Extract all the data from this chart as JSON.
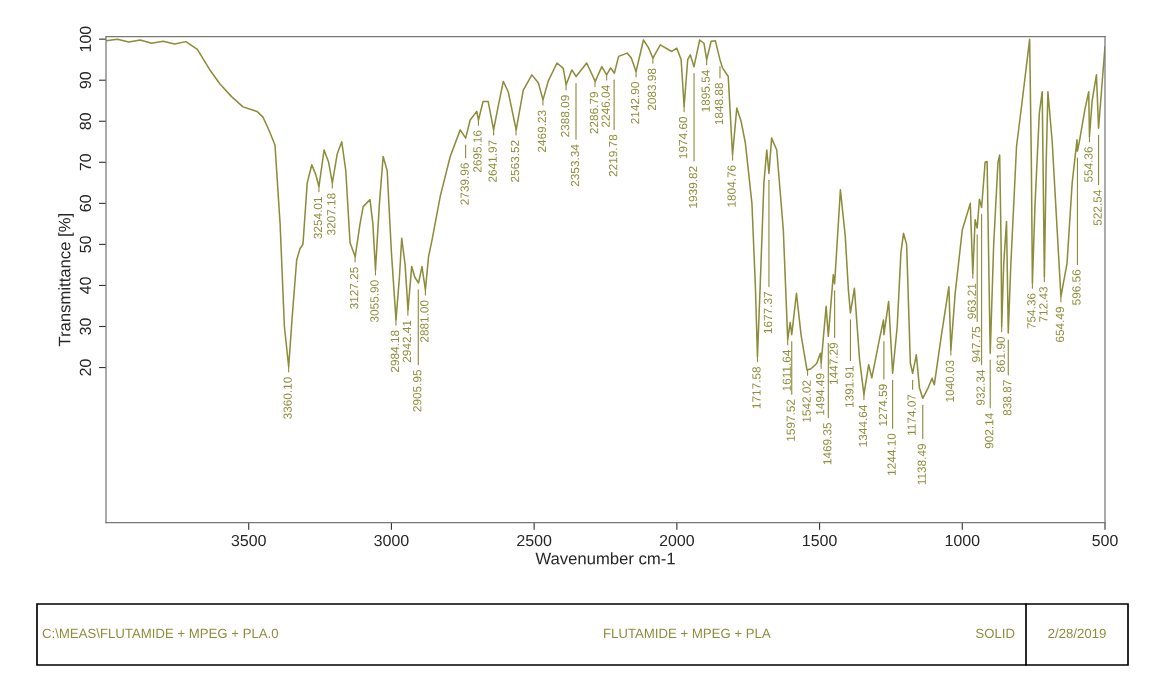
{
  "chart_data": {
    "type": "line",
    "xlabel": "Wavenumber cm-1",
    "ylabel": "Transmittance [%]",
    "xlim": [
      4000,
      500
    ],
    "ylim": [
      -17.8,
      100.6
    ],
    "xticks": [
      3500,
      3000,
      2500,
      2000,
      1500,
      1000,
      500
    ],
    "yticks": [
      20,
      30,
      40,
      50,
      60,
      70,
      80,
      90,
      100
    ],
    "grid": false,
    "marker": "none",
    "line_style": "solid",
    "x": [
      4000,
      3960,
      3920,
      3880,
      3840,
      3800,
      3760,
      3720,
      3680,
      3636,
      3600,
      3560,
      3520,
      3471,
      3450,
      3430,
      3408,
      3390,
      3375,
      3360,
      3348,
      3332,
      3320,
      3310,
      3295,
      3279,
      3265,
      3254,
      3236,
      3220,
      3207,
      3190,
      3174,
      3160,
      3145,
      3127,
      3110,
      3099,
      3075,
      3065,
      3055.9,
      3042,
      3029,
      3015,
      3000,
      2984,
      2972,
      2964,
      2952,
      2942,
      2929,
      2918,
      2905,
      2893,
      2881,
      2870,
      2858,
      2829,
      2794,
      2759,
      2740,
      2724,
      2701,
      2695,
      2679,
      2661,
      2642,
      2625,
      2608,
      2591,
      2563,
      2538,
      2508,
      2485,
      2469,
      2451,
      2420,
      2398,
      2388,
      2368,
      2353,
      2316,
      2286,
      2263,
      2246,
      2232,
      2219,
      2204,
      2174,
      2160,
      2143,
      2117,
      2100,
      2084,
      2058,
      2018,
      2000,
      1985,
      1974.6,
      1962,
      1953,
      1940,
      1920,
      1905,
      1895.5,
      1880,
      1865,
      1849,
      1840,
      1820,
      1805,
      1790,
      1775,
      1760,
      1737,
      1725,
      1717.6,
      1708,
      1695,
      1685,
      1677.4,
      1668,
      1650,
      1627,
      1611.6,
      1603,
      1597.5,
      1581,
      1565,
      1544,
      1530,
      1510,
      1497,
      1494.5,
      1477,
      1469.4,
      1452,
      1447.3,
      1427,
      1410,
      1399,
      1391.9,
      1378,
      1360,
      1344.6,
      1328,
      1317,
      1290,
      1276,
      1274.6,
      1258,
      1244,
      1228,
      1215,
      1206,
      1195,
      1182,
      1174,
      1161,
      1150,
      1138.5,
      1120,
      1106,
      1098,
      1075,
      1047,
      1040,
      1025,
      1000,
      972,
      963.2,
      955,
      947.8,
      940,
      932.3,
      920,
      913,
      906,
      902.1,
      890,
      875,
      869,
      864,
      861.9,
      855,
      845,
      838.9,
      830,
      810,
      790,
      764,
      758,
      754.4,
      745,
      730,
      720,
      712.4,
      706,
      700,
      685,
      654.5,
      633,
      615,
      598,
      596.6,
      590,
      570,
      557,
      554.4,
      545,
      530,
      522.5,
      515,
      500
    ],
    "series": [
      {
        "color": "#8c8c3a",
        "values": [
          99.6,
          100,
          99.3,
          99.8,
          99.0,
          99.5,
          98.8,
          99.4,
          97.5,
          92.5,
          89,
          86,
          83.5,
          82.4,
          81,
          78,
          74.2,
          55,
          30,
          20.2,
          32,
          46.2,
          49,
          50,
          65,
          69.4,
          67,
          64.1,
          73,
          70,
          65,
          72,
          75,
          68,
          50.4,
          47,
          55,
          59.2,
          60.9,
          55,
          43.8,
          60,
          71.4,
          68,
          48,
          31.6,
          42,
          51.5,
          45,
          34,
          44.6,
          42,
          40.6,
          44.6,
          38.9,
          47,
          51,
          61.7,
          71.4,
          77.9,
          75.9,
          80.3,
          82.4,
          80.3,
          84.8,
          84.8,
          77.9,
          84,
          89.7,
          87.2,
          77.9,
          87.6,
          91.3,
          89.3,
          85.2,
          89.7,
          94.2,
          92.9,
          88.9,
          92.5,
          90.9,
          94.2,
          89.7,
          93.3,
          91.3,
          93,
          91.7,
          95.8,
          96.6,
          95.5,
          92.1,
          99.8,
          98,
          95.4,
          98.6,
          97,
          97.8,
          95,
          83.6,
          95,
          96.2,
          93.3,
          99.8,
          99,
          95,
          99.5,
          99.6,
          95,
          93,
          90.9,
          71.8,
          83.2,
          80,
          74.7,
          60,
          40,
          22.7,
          40,
          65,
          73,
          67.3,
          75.9,
          73,
          53.5,
          26.8,
          31,
          28,
          38.1,
          28,
          19.4,
          19.7,
          21,
          23.5,
          21.1,
          34.9,
          27.6,
          42.6,
          40.4,
          63.3,
          52,
          38.9,
          33.3,
          39.3,
          22,
          13.4,
          20.7,
          17.5,
          27,
          31.6,
          28,
          36.1,
          18.6,
          30,
          48,
          52.7,
          50,
          21.1,
          18.6,
          23.1,
          15,
          12.5,
          15,
          17.4,
          15.8,
          27,
          39.7,
          24.3,
          38,
          53.5,
          60,
          43,
          56,
          54,
          61,
          59,
          70,
          70.2,
          40,
          23.5,
          50,
          70,
          71.8,
          50,
          30,
          45,
          55.6,
          28.4,
          45,
          73.8,
          85,
          100,
          70,
          40.6,
          60,
          82,
          87.2,
          42.2,
          70,
          87.2,
          75,
          37.3,
          45.4,
          65,
          75.5,
          72.7,
          75,
          83,
          87.2,
          76.3,
          85,
          91.3,
          78.3,
          85,
          98.2
        ]
      }
    ],
    "annotations": [
      {
        "text": "3360.10",
        "x": 3360.1,
        "y": 20.2
      },
      {
        "text": "3254.01",
        "x": 3254.01,
        "y": 64.1
      },
      {
        "text": "3207.18",
        "x": 3207.18,
        "y": 65
      },
      {
        "text": "3127.25",
        "x": 3127.25,
        "y": 47
      },
      {
        "text": "3055.90",
        "x": 3055.9,
        "y": 43.8
      },
      {
        "text": "2984.18",
        "x": 2984.18,
        "y": 31.6
      },
      {
        "text": "2942.41",
        "x": 2942.41,
        "y": 34
      },
      {
        "text": "2905.95",
        "x": 2905.95,
        "y": 40.6
      },
      {
        "text": "2881.00",
        "x": 2881.0,
        "y": 38.9
      },
      {
        "text": "2739.96",
        "x": 2739.96,
        "y": 75.9
      },
      {
        "text": "2695.16",
        "x": 2695.16,
        "y": 80.3
      },
      {
        "text": "2641.97",
        "x": 2641.97,
        "y": 77.9
      },
      {
        "text": "2563.52",
        "x": 2563.52,
        "y": 77.9
      },
      {
        "text": "2469.23",
        "x": 2469.23,
        "y": 85.2
      },
      {
        "text": "2388.09",
        "x": 2388.09,
        "y": 88.9
      },
      {
        "text": "2353.34",
        "x": 2353.34,
        "y": 90.9
      },
      {
        "text": "2286.79",
        "x": 2286.79,
        "y": 89.7
      },
      {
        "text": "2246.04",
        "x": 2246.04,
        "y": 91.3
      },
      {
        "text": "2219.78",
        "x": 2219.78,
        "y": 91.7
      },
      {
        "text": "2142.90",
        "x": 2142.9,
        "y": 92.1
      },
      {
        "text": "2083.98",
        "x": 2083.98,
        "y": 95.4
      },
      {
        "text": "1974.60",
        "x": 1974.6,
        "y": 83.6
      },
      {
        "text": "1939.82",
        "x": 1939.82,
        "y": 93.3
      },
      {
        "text": "1895.54",
        "x": 1895.54,
        "y": 95
      },
      {
        "text": "1848.88",
        "x": 1848.88,
        "y": 95
      },
      {
        "text": "1804.76",
        "x": 1804.76,
        "y": 71.8
      },
      {
        "text": "1717.58",
        "x": 1717.58,
        "y": 22.7
      },
      {
        "text": "1677.37",
        "x": 1677.37,
        "y": 67.3
      },
      {
        "text": "1611.64",
        "x": 1611.64,
        "y": 26.8
      },
      {
        "text": "1597.52",
        "x": 1597.52,
        "y": 28
      },
      {
        "text": "1542.02",
        "x": 1542.02,
        "y": 19.4
      },
      {
        "text": "1494.49",
        "x": 1494.49,
        "y": 21.1
      },
      {
        "text": "1469.35",
        "x": 1469.35,
        "y": 27.6
      },
      {
        "text": "1447.29",
        "x": 1447.29,
        "y": 40.4
      },
      {
        "text": "1391.91",
        "x": 1391.91,
        "y": 33.3
      },
      {
        "text": "1344.64",
        "x": 1344.64,
        "y": 13.4
      },
      {
        "text": "1274.59",
        "x": 1274.59,
        "y": 28
      },
      {
        "text": "1244.10",
        "x": 1244.1,
        "y": 18.6
      },
      {
        "text": "1174.07",
        "x": 1174.07,
        "y": 18.6
      },
      {
        "text": "1138.49",
        "x": 1138.49,
        "y": 12.5
      },
      {
        "text": "1040.03",
        "x": 1040.03,
        "y": 24.3
      },
      {
        "text": "963.21",
        "x": 963.21,
        "y": 43
      },
      {
        "text": "947.75",
        "x": 947.75,
        "y": 54
      },
      {
        "text": "932.34",
        "x": 932.34,
        "y": 59
      },
      {
        "text": "902.14",
        "x": 902.14,
        "y": 23.5
      },
      {
        "text": "861.90",
        "x": 861.9,
        "y": 30
      },
      {
        "text": "838.87",
        "x": 838.87,
        "y": 28.4
      },
      {
        "text": "754.36",
        "x": 754.36,
        "y": 40.6
      },
      {
        "text": "712.43",
        "x": 712.43,
        "y": 42.2
      },
      {
        "text": "654.49",
        "x": 654.49,
        "y": 37.3
      },
      {
        "text": "596.56",
        "x": 596.56,
        "y": 72.7
      },
      {
        "text": "554.36",
        "x": 554.36,
        "y": 76.3
      },
      {
        "text": "522.54",
        "x": 522.54,
        "y": 78.3
      },
      "C:\\MEAS\\FLUTAMIDE + MPEG + PLA.0",
      "FLUTAMIDE + MPEG + PLA",
      "SOLID",
      "2/28/2019"
    ]
  }
}
